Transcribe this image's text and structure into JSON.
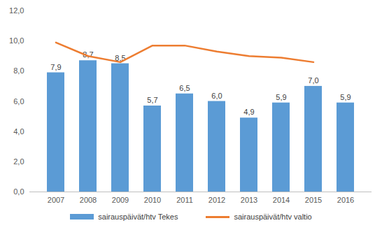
{
  "chart_data": {
    "type": "bar",
    "categories": [
      "2007",
      "2008",
      "2009",
      "2010",
      "2011",
      "2012",
      "2013",
      "2014",
      "2015",
      "2016"
    ],
    "series": [
      {
        "name": "sairauspäivät/htv Tekes",
        "type": "bar",
        "color": "#5b9bd5",
        "data_labels": true,
        "values": [
          7.9,
          8.7,
          8.5,
          5.7,
          6.5,
          6.0,
          4.9,
          5.9,
          7.0,
          5.9
        ],
        "value_labels": [
          "7,9",
          "8,7",
          "8,5",
          "5,7",
          "6,5",
          "6,0",
          "4,9",
          "5,9",
          "7,0",
          "5,9"
        ]
      },
      {
        "name": "sairauspäivät/htv valtio",
        "type": "line",
        "color": "#ed7d31",
        "values": [
          9.9,
          9.0,
          8.6,
          9.7,
          9.7,
          9.3,
          9.0,
          8.9,
          8.6,
          null
        ]
      }
    ],
    "ylim": [
      0,
      12
    ],
    "yticks": [
      {
        "value": 0,
        "label": "0,0"
      },
      {
        "value": 2,
        "label": "2,0"
      },
      {
        "value": 4,
        "label": "4,0"
      },
      {
        "value": 6,
        "label": "6,0"
      },
      {
        "value": 8,
        "label": "8,0"
      },
      {
        "value": 10,
        "label": "10,0"
      },
      {
        "value": 12,
        "label": "12,0"
      }
    ],
    "grid": false,
    "legend": "bottom"
  }
}
